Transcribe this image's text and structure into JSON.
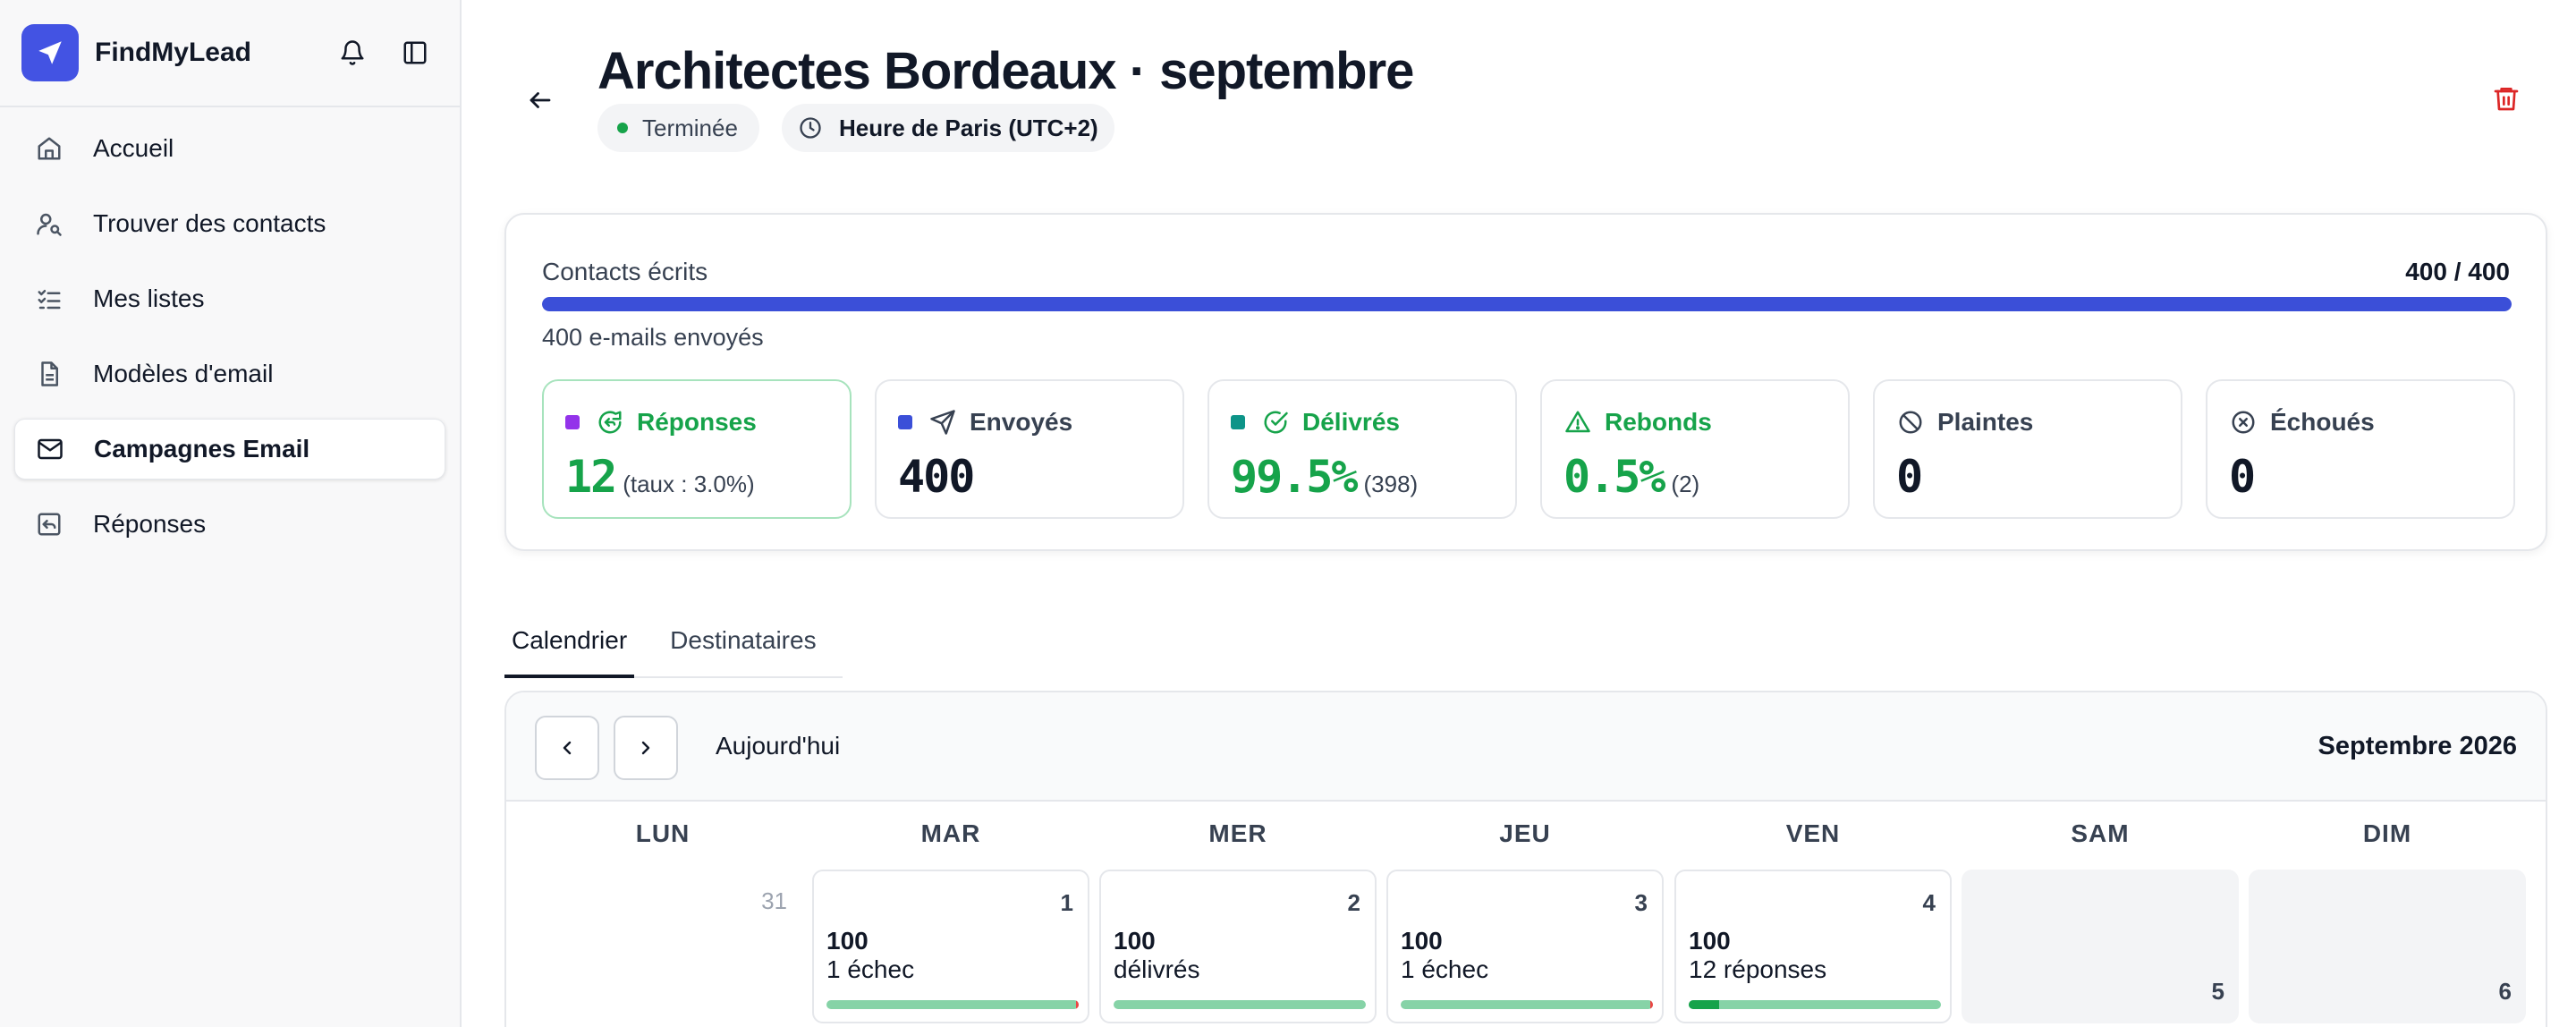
{
  "sidebar": {
    "brand": "FindMyLead",
    "items": [
      {
        "label": "Accueil"
      },
      {
        "label": "Trouver des contacts"
      },
      {
        "label": "Mes listes"
      },
      {
        "label": "Modèles d'email"
      },
      {
        "label": "Campagnes Email"
      },
      {
        "label": "Réponses"
      }
    ],
    "active_index": 4
  },
  "campaign": {
    "title": "Architectes Bordeaux · septembre",
    "status": "Terminée",
    "timezone": "Heure de Paris (UTC+2)"
  },
  "stats": {
    "progress_label": "Contacts écrits",
    "progress_count": "400 / 400",
    "progress_fraction": 1.0,
    "sent_note": "400 e-mails envoyés",
    "metrics": [
      {
        "title": "Réponses",
        "value": "12",
        "sub": "(taux : 3.0%)",
        "square_color": "#9333ea"
      },
      {
        "title": "Envoyés",
        "value": "400",
        "sub": "",
        "square_color": "#3b4fd8"
      },
      {
        "title": "Délivrés",
        "value": "99.5%",
        "sub": "(398)",
        "square_color": "#0d9488"
      },
      {
        "title": "Rebonds",
        "value": "0.5%",
        "sub": "(2)"
      },
      {
        "title": "Plaintes",
        "value": "0",
        "sub": ""
      },
      {
        "title": "Échoués",
        "value": "0",
        "sub": ""
      }
    ]
  },
  "tabs": [
    {
      "label": "Calendrier"
    },
    {
      "label": "Destinataires"
    }
  ],
  "calendar": {
    "today_label": "Aujourd'hui",
    "month_label": "Septembre 2026",
    "weekdays": [
      "LUN",
      "MAR",
      "MER",
      "JEU",
      "VEN",
      "SAM",
      "DIM"
    ],
    "days": [
      {
        "num": "31"
      },
      {
        "num": "1",
        "count": "100",
        "note": "1 échec",
        "ok_fraction": 0.99,
        "fail_fraction": 0.01
      },
      {
        "num": "2",
        "count": "100",
        "note": "délivrés",
        "ok_fraction": 1.0
      },
      {
        "num": "3",
        "count": "100",
        "note": "1 échec",
        "ok_fraction": 0.99,
        "fail_fraction": 0.01
      },
      {
        "num": "4",
        "count": "100",
        "note": "12 réponses",
        "reply_fraction": 0.12
      },
      {
        "num": "5"
      },
      {
        "num": "6"
      }
    ]
  },
  "colors": {
    "accent": "#3b4fd8",
    "success": "#16a34a",
    "danger": "#dc2626"
  }
}
